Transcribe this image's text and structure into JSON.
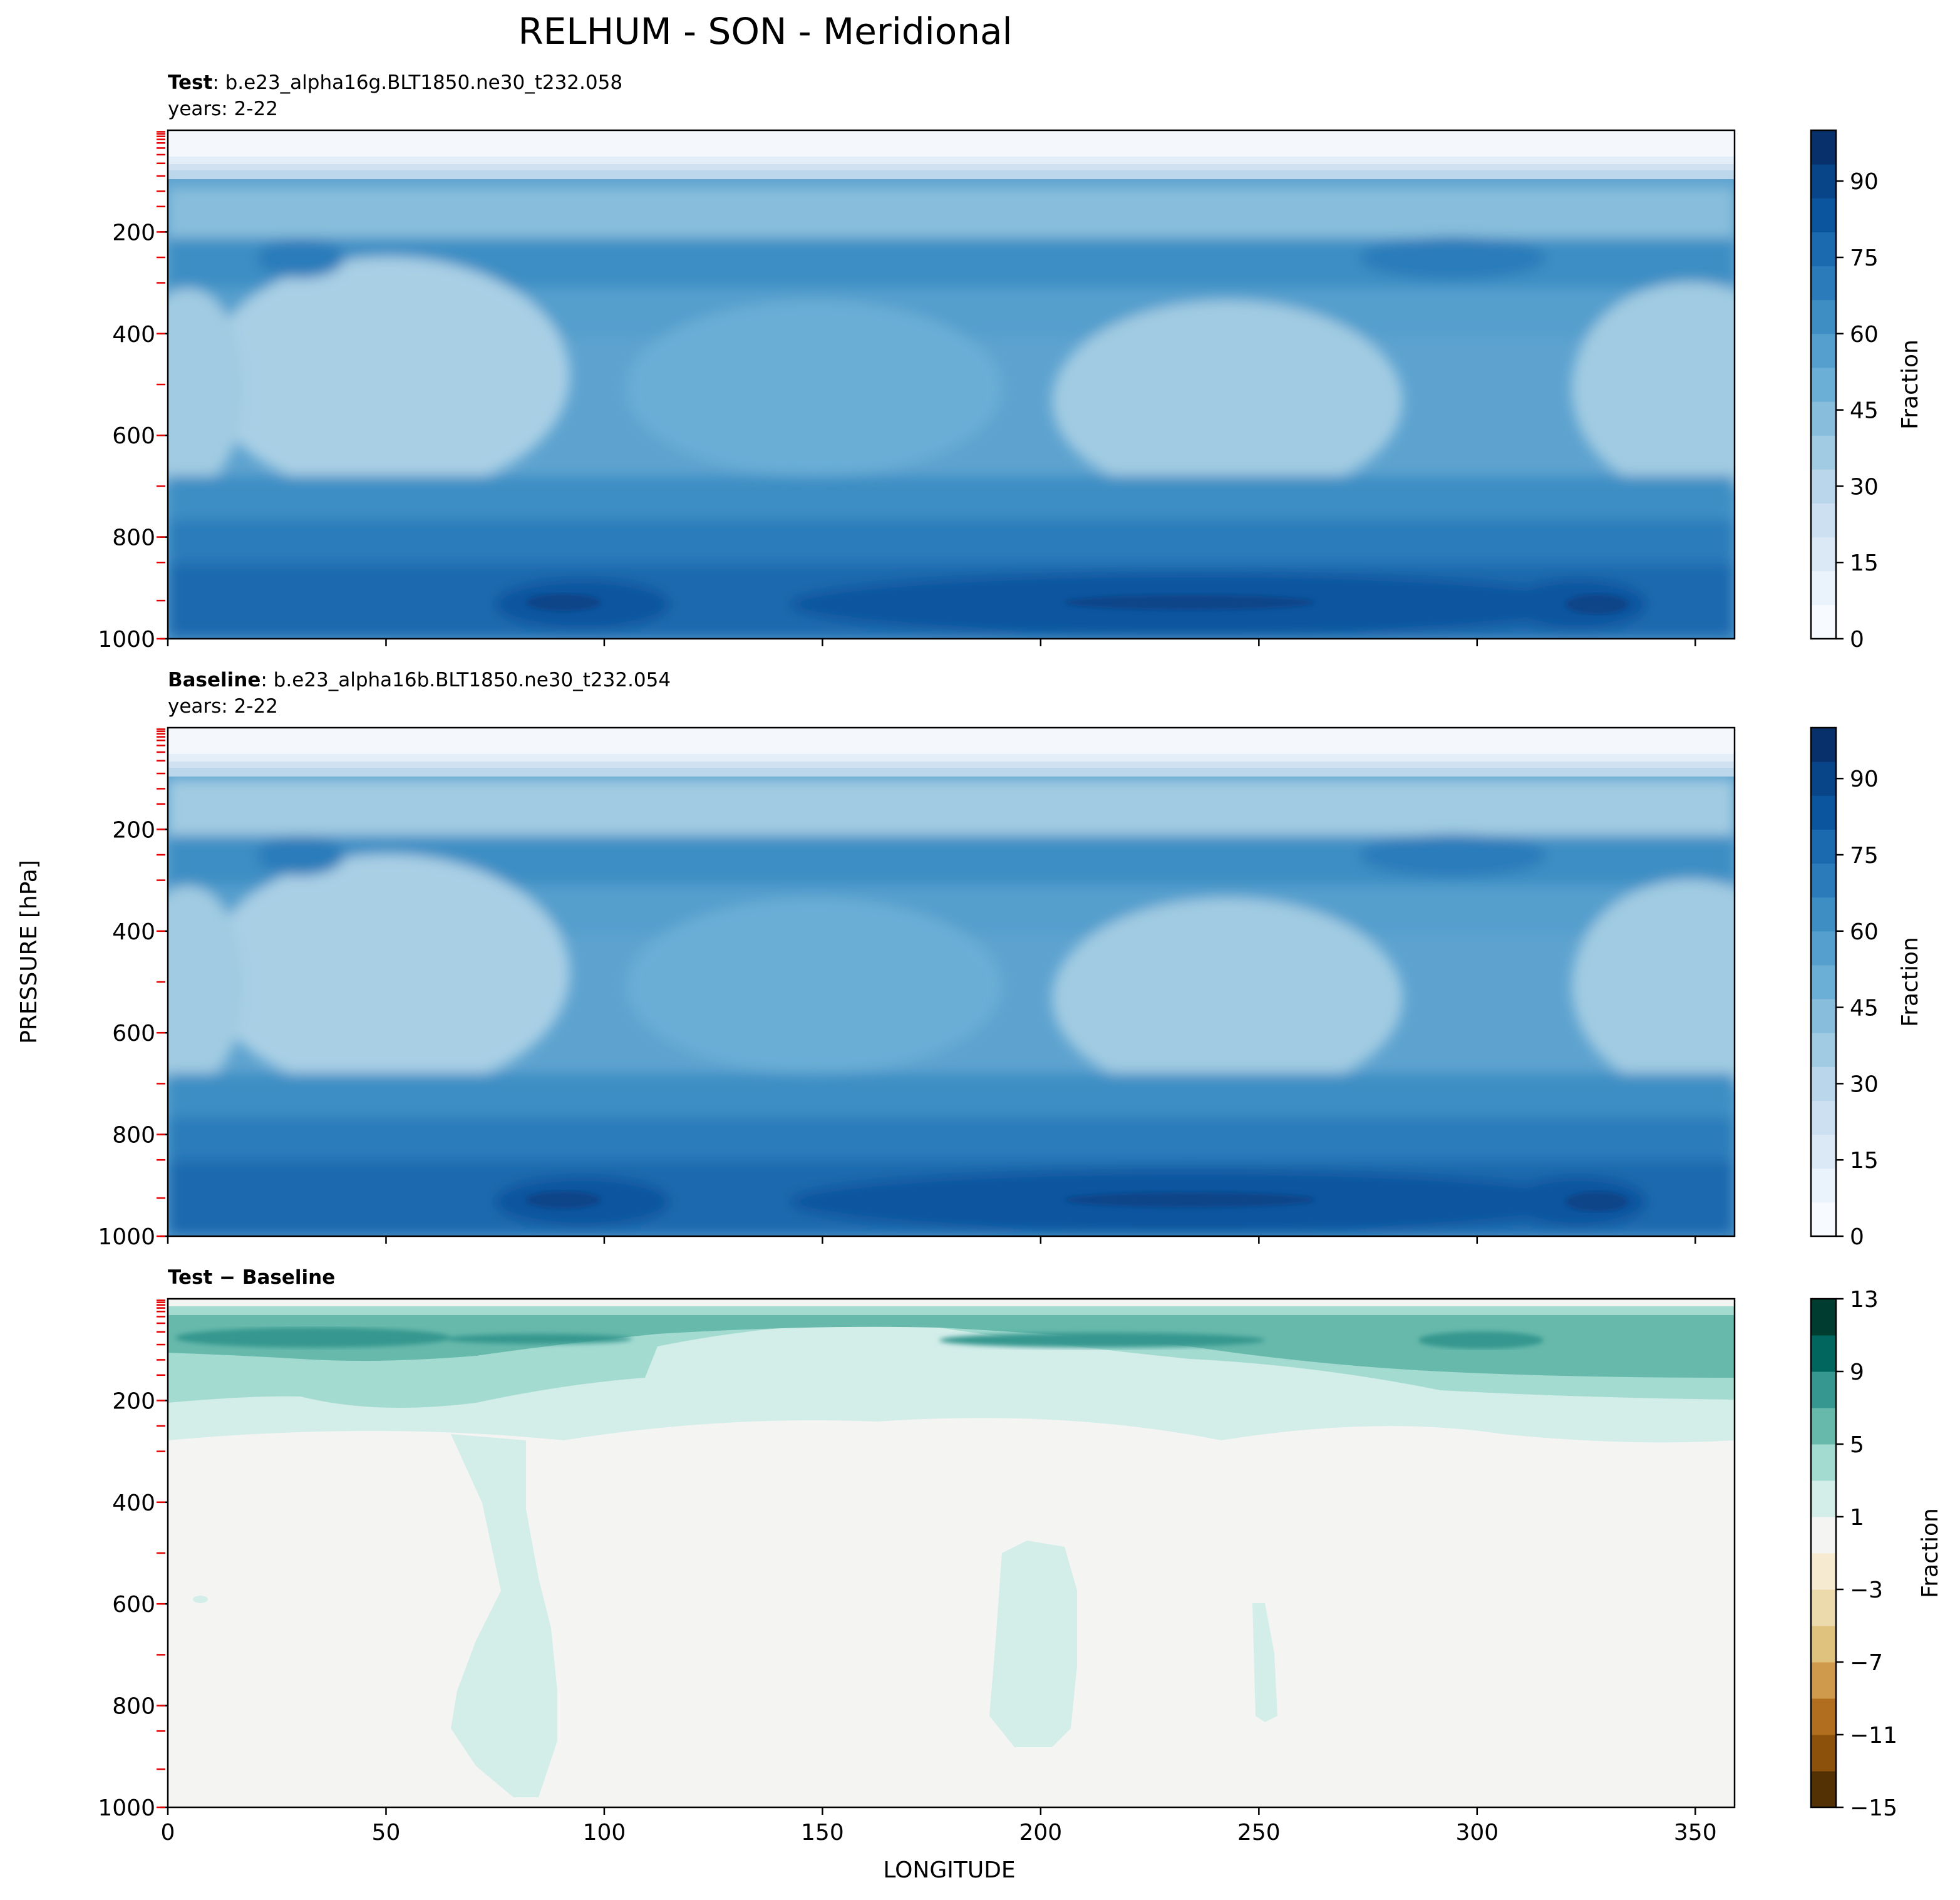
{
  "figure": {
    "title": "RELHUM - SON - Meridional",
    "ylabel": "PRESSURE [hPa]",
    "xlabel": "LONGITUDE"
  },
  "chart_data": [
    {
      "type": "heatmap",
      "panel": "test",
      "label_bold": "Test",
      "label_rest": ": b.e23_alpha16g.BLT1850.ne30_t232.058",
      "years": "years: 2-22",
      "xlim": [
        0,
        359
      ],
      "ylim": [
        1000,
        0
      ],
      "xticks": [
        0,
        50,
        100,
        150,
        200,
        250,
        300,
        350
      ],
      "yticks": [
        200,
        400,
        600,
        800,
        1000
      ],
      "show_xtick_labels": false,
      "colorbar": {
        "label": "Fraction",
        "range": [
          0,
          100
        ],
        "ticks": [
          0,
          15,
          30,
          45,
          60,
          75,
          90
        ],
        "colormap": "Blues",
        "colors": [
          "#f7fbff",
          "#eaf2fb",
          "#dbe9f6",
          "#cde0f1",
          "#bad6eb",
          "#a1cbe2",
          "#88bedc",
          "#6baed6",
          "#549fcd",
          "#3e8ec4",
          "#2b7bba",
          "#1b69af",
          "#0b559f",
          "#084488",
          "#08306b"
        ]
      }
    },
    {
      "type": "heatmap",
      "panel": "baseline",
      "label_bold": "Baseline",
      "label_rest": ": b.e23_alpha16b.BLT1850.ne30_t232.054",
      "years": "years: 2-22",
      "xlim": [
        0,
        359
      ],
      "ylim": [
        1000,
        0
      ],
      "xticks": [
        0,
        50,
        100,
        150,
        200,
        250,
        300,
        350
      ],
      "yticks": [
        200,
        400,
        600,
        800,
        1000
      ],
      "show_xtick_labels": false,
      "colorbar": {
        "label": "Fraction",
        "range": [
          0,
          100
        ],
        "ticks": [
          0,
          15,
          30,
          45,
          60,
          75,
          90
        ],
        "colormap": "Blues",
        "colors": [
          "#f7fbff",
          "#eaf2fb",
          "#dbe9f6",
          "#cde0f1",
          "#bad6eb",
          "#a1cbe2",
          "#88bedc",
          "#6baed6",
          "#549fcd",
          "#3e8ec4",
          "#2b7bba",
          "#1b69af",
          "#0b559f",
          "#084488",
          "#08306b"
        ]
      }
    },
    {
      "type": "heatmap",
      "panel": "diff",
      "label_bold": "Test − Baseline",
      "label_rest": "",
      "years": "",
      "xlim": [
        0,
        359
      ],
      "ylim": [
        1000,
        0
      ],
      "xticks": [
        0,
        50,
        100,
        150,
        200,
        250,
        300,
        350
      ],
      "yticks": [
        200,
        400,
        600,
        800,
        1000
      ],
      "show_xtick_labels": true,
      "colorbar": {
        "label": "Fraction",
        "range": [
          -15,
          13
        ],
        "ticks": [
          -15,
          -11,
          -7,
          -3,
          1,
          5,
          9,
          13
        ],
        "colormap": "BrBG",
        "levels": [
          -15,
          -13,
          -11,
          -9,
          -7,
          -5,
          -3,
          -1,
          1,
          3,
          5,
          7,
          9,
          11,
          13
        ],
        "colors": [
          "#543005",
          "#8c510a",
          "#b06e1e",
          "#cf9a4c",
          "#dfc27d",
          "#ecd9ac",
          "#f6ebd0",
          "#f4f4f2",
          "#d3ede9",
          "#a4dbd1",
          "#67b9ab",
          "#35978f",
          "#01665e",
          "#003c30"
        ]
      }
    }
  ]
}
